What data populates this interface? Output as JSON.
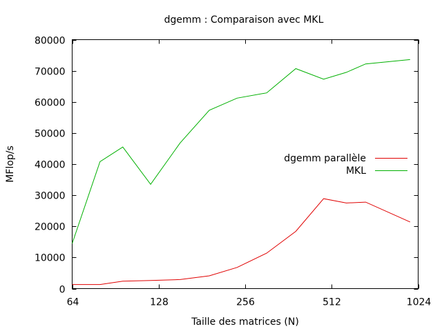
{
  "chart_data": {
    "type": "line",
    "title": "dgemm : Comparaison avec MKL",
    "xlabel": "Taille des matrices (N)",
    "ylabel": "MFlop/s",
    "x_scale": "log2",
    "xlim": [
      64,
      1024
    ],
    "ylim": [
      0,
      80000
    ],
    "x_ticks": [
      64,
      128,
      256,
      512,
      1024
    ],
    "x_tick_labels": [
      "64",
      "128",
      "256",
      "512",
      "1024"
    ],
    "y_ticks": [
      0,
      10000,
      20000,
      30000,
      40000,
      50000,
      60000,
      70000,
      80000
    ],
    "y_tick_labels": [
      "0",
      "10000",
      "20000",
      "30000",
      "40000",
      "50000",
      "60000",
      "70000",
      "80000"
    ],
    "grid": false,
    "legend_position": "right",
    "x": [
      64,
      80,
      96,
      120,
      152,
      192,
      240,
      304,
      384,
      480,
      576,
      672,
      960
    ],
    "series": [
      {
        "name": "dgemm parallèle",
        "color": "#e00000",
        "values": [
          1300,
          1300,
          2400,
          2600,
          2900,
          4100,
          6800,
          11400,
          18400,
          28900,
          27500,
          27800,
          21400
        ]
      },
      {
        "name": "MKL",
        "color": "#00b000",
        "values": [
          14500,
          40800,
          45500,
          33500,
          46800,
          57300,
          61200,
          62900,
          70700,
          67300,
          69500,
          72200,
          73600
        ]
      }
    ]
  }
}
